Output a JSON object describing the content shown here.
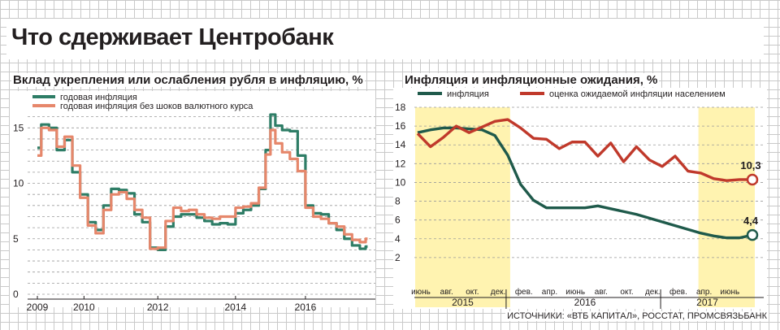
{
  "title": "Что сдерживает Центробанк",
  "source": "ИСТОЧНИКИ: «ВТБ КАПИТАЛ», РОССТАТ, ПРОМСВЯЗЬБАНК",
  "colors": {
    "green": "#2e7d66",
    "salmon": "#e6876b",
    "darkgreen": "#1f5a4b",
    "red": "#c0392b",
    "highlight": "#fff3b0"
  },
  "chart_data": [
    {
      "type": "line",
      "title": "Вклад укрепления или ослабления рубля в инфляцию, %",
      "ylim": [
        0,
        17
      ],
      "yticks": [
        0,
        5,
        10,
        15
      ],
      "xlim": [
        2009,
        2017.7
      ],
      "xticks": [
        "2009",
        "2010",
        "2012",
        "2014",
        "2016"
      ],
      "xtick_values": [
        2009,
        2010.2,
        2012.1,
        2014.1,
        2015.9
      ],
      "series": [
        {
          "name": "годовая инфляция",
          "color": "#2e7d66",
          "x": [
            2009.0,
            2009.2,
            2009.4,
            2009.6,
            2009.8,
            2010.0,
            2010.2,
            2010.4,
            2010.6,
            2010.8,
            2011.0,
            2011.2,
            2011.4,
            2011.6,
            2011.8,
            2012.0,
            2012.2,
            2012.4,
            2012.6,
            2012.8,
            2013.0,
            2013.2,
            2013.4,
            2013.6,
            2013.8,
            2014.0,
            2014.2,
            2014.4,
            2014.6,
            2014.8,
            2014.95,
            2015.05,
            2015.2,
            2015.4,
            2015.6,
            2015.8,
            2016.0,
            2016.2,
            2016.4,
            2016.6,
            2016.8,
            2017.0,
            2017.2,
            2017.4,
            2017.5
          ],
          "y": [
            13.2,
            15.3,
            15.0,
            13.0,
            13.9,
            11.0,
            9.0,
            6.5,
            5.8,
            8.0,
            9.5,
            9.4,
            9.1,
            7.2,
            6.5,
            4.2,
            4.0,
            6.1,
            7.0,
            7.2,
            7.2,
            6.9,
            6.6,
            6.3,
            6.4,
            6.3,
            7.3,
            7.6,
            8.0,
            9.5,
            13.0,
            16.2,
            15.2,
            14.8,
            14.7,
            12.5,
            8.0,
            7.3,
            7.2,
            6.4,
            5.8,
            5.0,
            4.4,
            4.1,
            4.3
          ]
        },
        {
          "name": "годовая инфляция без шоков валютного курса",
          "color": "#e6876b",
          "x": [
            2009.0,
            2009.2,
            2009.4,
            2009.6,
            2009.8,
            2010.0,
            2010.2,
            2010.4,
            2010.6,
            2010.8,
            2011.0,
            2011.2,
            2011.4,
            2011.6,
            2011.8,
            2012.0,
            2012.2,
            2012.4,
            2012.6,
            2012.8,
            2013.0,
            2013.2,
            2013.4,
            2013.6,
            2013.8,
            2014.0,
            2014.2,
            2014.4,
            2014.6,
            2014.8,
            2014.95,
            2015.05,
            2015.2,
            2015.4,
            2015.6,
            2015.8,
            2016.0,
            2016.2,
            2016.4,
            2016.6,
            2016.8,
            2017.0,
            2017.2,
            2017.4,
            2017.5
          ],
          "y": [
            12.5,
            15.0,
            14.8,
            13.3,
            14.2,
            11.6,
            8.7,
            6.2,
            5.5,
            7.6,
            9.0,
            9.2,
            8.6,
            7.6,
            6.9,
            4.1,
            4.2,
            6.6,
            7.8,
            7.5,
            7.6,
            7.2,
            6.9,
            6.8,
            7.0,
            7.0,
            7.8,
            7.9,
            8.2,
            9.6,
            12.6,
            14.8,
            13.6,
            12.8,
            12.2,
            11.1,
            7.8,
            7.0,
            6.8,
            6.4,
            6.1,
            5.4,
            4.9,
            4.7,
            5.0
          ]
        }
      ]
    },
    {
      "type": "line",
      "title": "Инфляция и инфляционные ожидания, %",
      "ylim": [
        0,
        18
      ],
      "yticks": [
        2,
        4,
        6,
        8,
        10,
        12,
        14,
        16,
        18
      ],
      "months": [
        "июнь",
        "авг.",
        "окт.",
        "дек.",
        "фев.",
        "апр.",
        "июнь",
        "авг.",
        "окт.",
        "дек.",
        "фев.",
        "апр.",
        "июнь"
      ],
      "years": [
        "2015",
        "2016",
        "2017"
      ],
      "highlight_spans": [
        [
          0,
          7
        ],
        [
          22,
          26
        ]
      ],
      "series": [
        {
          "name": "инфляция",
          "color": "#1f5a4b",
          "x": [
            0,
            1,
            2,
            3,
            4,
            5,
            6,
            7,
            8,
            9,
            10,
            11,
            12,
            13,
            14,
            15,
            16,
            17,
            18,
            19,
            20,
            21,
            22,
            23,
            24,
            25,
            26
          ],
          "y": [
            15.3,
            15.6,
            15.8,
            15.8,
            15.7,
            15.6,
            15.0,
            12.9,
            9.8,
            8.1,
            7.3,
            7.3,
            7.3,
            7.3,
            7.5,
            7.2,
            6.9,
            6.6,
            6.2,
            5.8,
            5.4,
            5.0,
            4.6,
            4.3,
            4.1,
            4.1,
            4.4
          ],
          "end_label": "4,4"
        },
        {
          "name": "оценка ожидаемой инфляции населением",
          "color": "#c0392b",
          "x": [
            0,
            1,
            2,
            3,
            4,
            5,
            6,
            7,
            8,
            9,
            10,
            11,
            12,
            13,
            14,
            15,
            16,
            17,
            18,
            19,
            20,
            21,
            22,
            23,
            24,
            25,
            26
          ],
          "y": [
            15.2,
            13.8,
            14.8,
            16.0,
            15.3,
            15.9,
            16.5,
            16.7,
            15.8,
            14.7,
            14.6,
            13.6,
            14.3,
            14.3,
            12.8,
            14.2,
            12.2,
            13.8,
            12.4,
            11.7,
            12.8,
            11.2,
            11.0,
            10.4,
            10.2,
            10.3,
            10.3
          ],
          "end_label": "10,3"
        }
      ]
    }
  ]
}
